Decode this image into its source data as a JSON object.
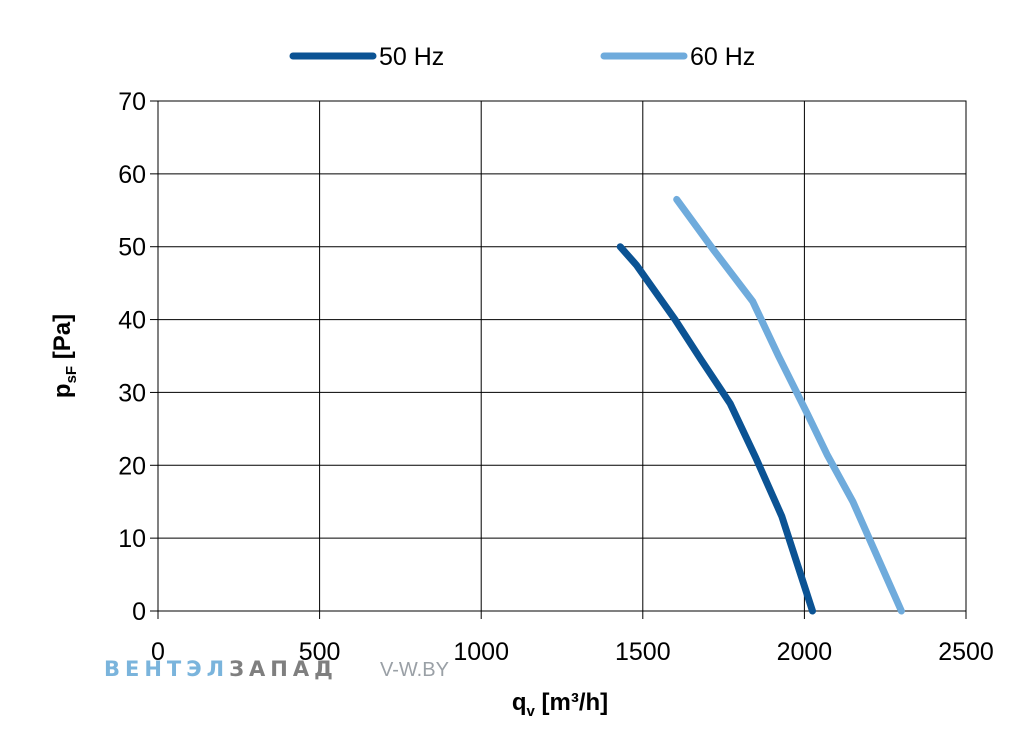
{
  "chart_data": {
    "type": "line",
    "title": "",
    "xlabel": "q",
    "xlabel_sub": "v",
    "xlabel_unit": " [m³/h]",
    "ylabel": "p",
    "ylabel_sub": "sF",
    "ylabel_unit": " [Pa]",
    "xlim": [
      0,
      2500
    ],
    "ylim": [
      0,
      70
    ],
    "xticks": [
      0,
      500,
      1000,
      1500,
      2000,
      2500
    ],
    "yticks": [
      0,
      10,
      20,
      30,
      40,
      50,
      60,
      70
    ],
    "grid": true,
    "legend_position": "top",
    "series": [
      {
        "name": "50 Hz",
        "color": "#0b5394",
        "points": [
          [
            1430,
            50
          ],
          [
            1480,
            47.5
          ],
          [
            1600,
            40
          ],
          [
            1680,
            34.5
          ],
          [
            1770,
            28.5
          ],
          [
            1850,
            21
          ],
          [
            1930,
            13
          ],
          [
            2025,
            0
          ]
        ]
      },
      {
        "name": "60 Hz",
        "color": "#6fabdc",
        "points": [
          [
            1605,
            56.5
          ],
          [
            1720,
            49.5
          ],
          [
            1840,
            42.5
          ],
          [
            1920,
            35
          ],
          [
            2010,
            27
          ],
          [
            2070,
            21.5
          ],
          [
            2150,
            15
          ],
          [
            2300,
            0
          ]
        ]
      }
    ]
  },
  "watermark": {
    "text_part1": "ВЕНТЭЛ",
    "text_part2": "ЗАПАД",
    "url": "V-W.BY",
    "color_part1": "#7ab4dc",
    "color_part2": "#7f7f7f",
    "color_url": "#9aa0a6"
  }
}
